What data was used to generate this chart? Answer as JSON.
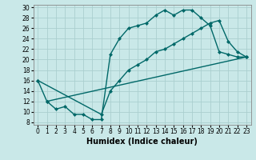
{
  "xlabel": "Humidex (Indice chaleur)",
  "bg_color": "#c9e8e8",
  "grid_color": "#aacfcf",
  "line_color": "#006868",
  "xlim": [
    -0.5,
    23.5
  ],
  "ylim": [
    7.5,
    30.5
  ],
  "xticks": [
    0,
    1,
    2,
    3,
    4,
    5,
    6,
    7,
    8,
    9,
    10,
    11,
    12,
    13,
    14,
    15,
    16,
    17,
    18,
    19,
    20,
    21,
    22,
    23
  ],
  "yticks": [
    8,
    10,
    12,
    14,
    16,
    18,
    20,
    22,
    24,
    26,
    28,
    30
  ],
  "line1_x": [
    0,
    1,
    2,
    3,
    4,
    5,
    6,
    7,
    8,
    9,
    10,
    11,
    12,
    13,
    14,
    15,
    16,
    17,
    18,
    19,
    20,
    21,
    22,
    23
  ],
  "line1_y": [
    16,
    12,
    10.5,
    11,
    9.5,
    9.5,
    8.5,
    8.5,
    21,
    24,
    26,
    26.5,
    27,
    28.5,
    29.5,
    28.5,
    29.5,
    29.5,
    28,
    26.5,
    21.5,
    21,
    20.5,
    20.5
  ],
  "line2_x": [
    0,
    7,
    8,
    9,
    10,
    11,
    12,
    13,
    14,
    15,
    16,
    17,
    18,
    19,
    20,
    21,
    22,
    23
  ],
  "line2_y": [
    16,
    9.5,
    14,
    16,
    18,
    19,
    20,
    21.5,
    22,
    23,
    24,
    25,
    26,
    27,
    27.5,
    23.5,
    21.5,
    20.5
  ],
  "line3_x": [
    1,
    23
  ],
  "line3_y": [
    12,
    20.5
  ],
  "marker_size": 2.5,
  "linewidth": 1.0,
  "xlabel_fontsize": 7,
  "tick_fontsize": 5.5
}
